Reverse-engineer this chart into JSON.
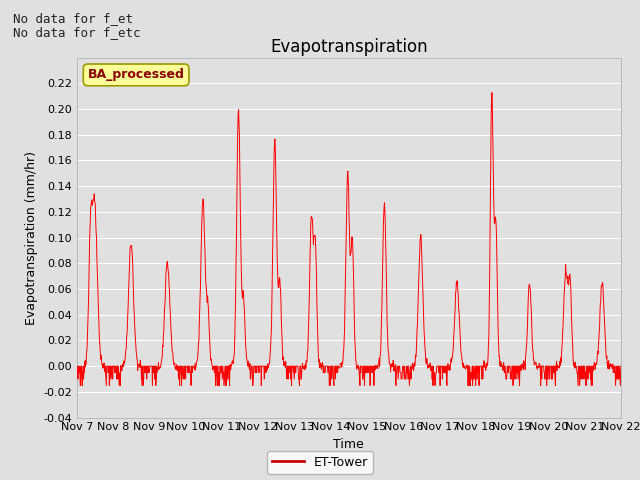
{
  "title": "Evapotranspiration",
  "ylabel": "Evapotranspiration (mm/hr)",
  "xlabel": "Time",
  "top_left_text_line1": "No data for f_et",
  "top_left_text_line2": "No data for f_etc",
  "stamp_label": "BA_processed",
  "ylim": [
    -0.04,
    0.24
  ],
  "yticks": [
    -0.04,
    -0.02,
    0.0,
    0.02,
    0.04,
    0.06,
    0.08,
    0.1,
    0.12,
    0.14,
    0.16,
    0.18,
    0.2,
    0.22
  ],
  "xtick_labels": [
    "Nov 7",
    "Nov 8",
    "Nov 9",
    "Nov 10",
    "Nov 11",
    "Nov 12",
    "Nov 13",
    "Nov 14",
    "Nov 15",
    "Nov 16",
    "Nov 17",
    "Nov 18",
    "Nov 19",
    "Nov 20",
    "Nov 21",
    "Nov 22"
  ],
  "line_color": "#ff0000",
  "line_width": 0.7,
  "legend_label": "ET-Tower",
  "legend_line_color": "#cc0000",
  "background_color": "#e0e0e0",
  "plot_bg_color": "#e0e0e0",
  "stamp_bg_color": "#ffff99",
  "stamp_border_color": "#999900",
  "title_fontsize": 12,
  "label_fontsize": 9,
  "tick_fontsize": 8,
  "annotation_fontsize": 9
}
